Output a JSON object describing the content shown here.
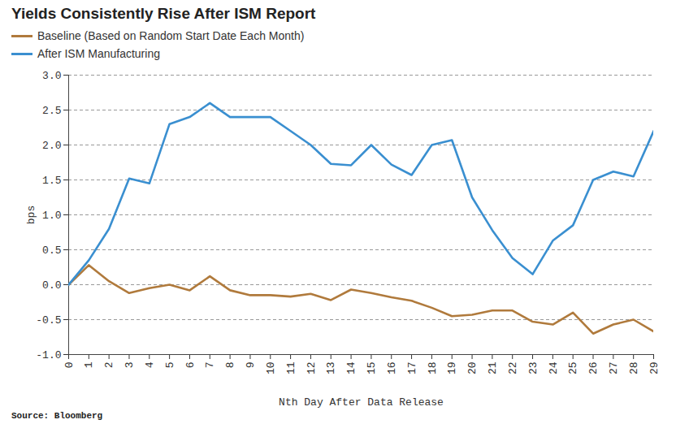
{
  "chart_data": {
    "type": "line",
    "title": "Yields Consistently Rise After ISM Report",
    "caption": "Source: Bloomberg",
    "x_label": "Nth Day After Data Release",
    "y_label": "bps",
    "x": [
      0,
      1,
      2,
      3,
      4,
      5,
      6,
      7,
      8,
      9,
      10,
      11,
      12,
      13,
      14,
      15,
      16,
      17,
      18,
      19,
      20,
      21,
      22,
      23,
      24,
      25,
      26,
      27,
      28,
      29
    ],
    "series": [
      {
        "name": "Baseline (Based on Random Start Date Each Month)",
        "color": "#b07a3c",
        "values": [
          0,
          0.28,
          0.05,
          -0.12,
          -0.05,
          0.0,
          -0.08,
          0.12,
          -0.08,
          -0.15,
          -0.15,
          -0.17,
          -0.13,
          -0.22,
          -0.07,
          -0.12,
          -0.18,
          -0.23,
          -0.33,
          -0.45,
          -0.43,
          -0.37,
          -0.37,
          -0.53,
          -0.57,
          -0.4,
          -0.7,
          -0.57,
          -0.5,
          -0.67
        ]
      },
      {
        "name": "After ISM Manufacturing",
        "color": "#3a8fd0",
        "values": [
          0,
          0.35,
          0.8,
          1.52,
          1.45,
          2.3,
          2.4,
          2.6,
          2.4,
          2.4,
          2.4,
          2.2,
          2.0,
          1.73,
          1.71,
          2.0,
          1.72,
          1.57,
          2.0,
          2.07,
          1.25,
          0.78,
          0.38,
          0.15,
          0.63,
          0.85,
          1.5,
          1.62,
          1.55,
          2.2
        ]
      }
    ],
    "xlim": [
      0,
      29
    ],
    "xticks": [
      0,
      1,
      2,
      3,
      4,
      5,
      6,
      7,
      8,
      9,
      10,
      11,
      12,
      13,
      14,
      15,
      16,
      17,
      18,
      19,
      20,
      21,
      22,
      23,
      24,
      25,
      26,
      27,
      28,
      29
    ],
    "ylim": [
      -1.0,
      3.0
    ],
    "yticks": [
      {
        "value": -1.0,
        "label": "-1.0"
      },
      -0.5,
      {
        "value": 0.0,
        "label": "0.0"
      },
      0.5,
      {
        "value": 1.0,
        "label": "1.0"
      },
      1.5,
      {
        "value": 2.0,
        "label": "2.0"
      },
      2.5,
      {
        "value": 3.0,
        "label": "3.0"
      }
    ],
    "grid": true,
    "legend": "top-left"
  }
}
